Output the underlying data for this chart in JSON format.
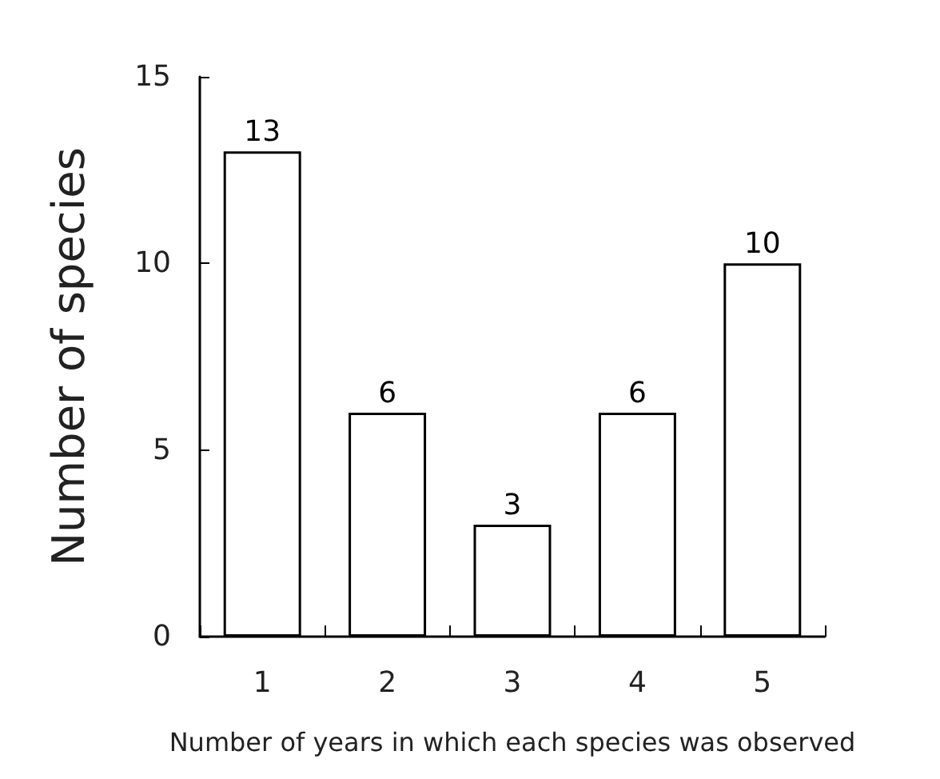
{
  "chart_data": {
    "type": "bar",
    "xlabel": "Number of years in which each species was observed",
    "ylabel": "Number of species",
    "categories": [
      "1",
      "2",
      "3",
      "4",
      "5"
    ],
    "values": [
      13,
      6,
      3,
      6,
      10
    ],
    "color": "#ffffff",
    "ylim": [
      0,
      15
    ],
    "yticks": [
      0,
      5,
      10,
      15
    ],
    "grid": false,
    "data_labels": true
  }
}
